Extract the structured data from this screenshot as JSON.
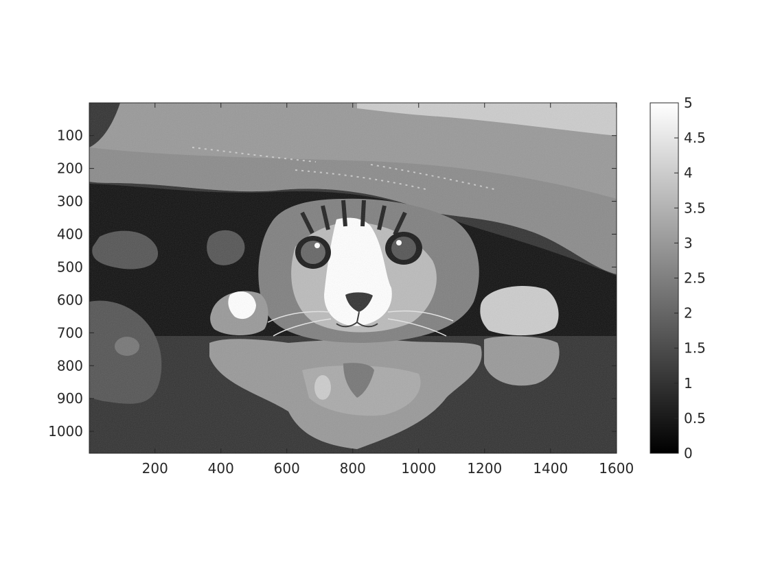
{
  "chart_data": {
    "type": "heatmap",
    "title": "",
    "xlabel": "",
    "ylabel": "",
    "xlim": [
      0.5,
      1600.5
    ],
    "ylim": [
      0.5,
      1066.5
    ],
    "y_reversed": true,
    "x_ticks": [
      200,
      400,
      600,
      800,
      1000,
      1200,
      1400,
      1600
    ],
    "y_ticks": [
      100,
      200,
      300,
      400,
      500,
      600,
      700,
      800,
      900,
      1000
    ],
    "colormap": "gray",
    "clim": [
      0,
      5
    ],
    "quantized_levels": [
      0,
      1,
      2,
      3,
      4,
      5
    ],
    "colorbar": {
      "location": "right",
      "ticks": [
        0,
        0.5,
        1,
        1.5,
        2,
        2.5,
        3,
        3.5,
        4,
        4.5,
        5
      ]
    },
    "image_content": "cat peeking out from under a blanket, quantized to 6 gray levels",
    "colors": {
      "level0": "#000000",
      "level1": "#333333",
      "level2": "#666666",
      "level3": "#999999",
      "level4": "#cccccc",
      "level5": "#ffffff"
    }
  }
}
